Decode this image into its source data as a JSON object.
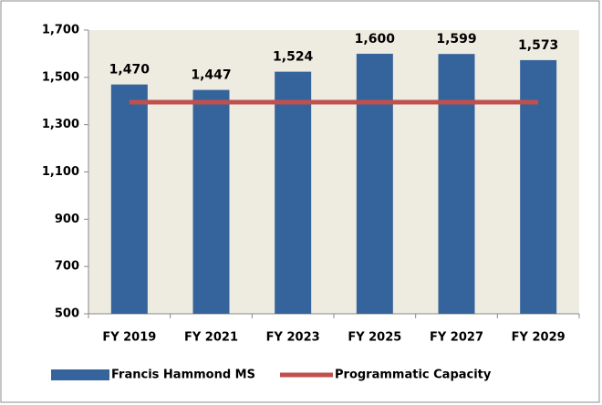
{
  "chart_data": {
    "type": "bar",
    "categories": [
      "FY 2019",
      "FY 2021",
      "FY 2023",
      "FY 2025",
      "FY 2027",
      "FY 2029"
    ],
    "series": [
      {
        "name": "Francis Hammond MS",
        "type": "bar",
        "color": "#35649c",
        "values": [
          1470,
          1447,
          1524,
          1600,
          1599,
          1573
        ],
        "value_labels": [
          "1,470",
          "1,447",
          "1,524",
          "1,600",
          "1,599",
          "1,573"
        ]
      },
      {
        "name": "Programmatic Capacity",
        "type": "line",
        "color": "#c0504d",
        "values": [
          1395,
          1395,
          1395,
          1395,
          1395,
          1395
        ]
      }
    ],
    "ylim": [
      500,
      1700
    ],
    "yticks": [
      500,
      700,
      900,
      {
        "value": 1100,
        "label": "1,100"
      },
      {
        "value": 1300,
        "label": "1,300"
      },
      {
        "value": 1500,
        "label": "1,500"
      },
      {
        "value": 1700,
        "label": "1,700"
      }
    ],
    "legend": "bottom"
  }
}
